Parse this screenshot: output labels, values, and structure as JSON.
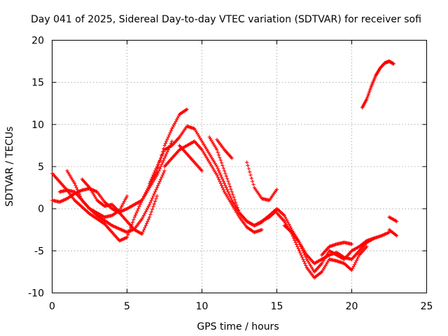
{
  "chart_data": {
    "type": "scatter",
    "title": "Day 041 of 2025, Sidereal Day-to-day VTEC variation (SDTVAR) for receiver sofi",
    "xlabel": "GPS time / hours",
    "ylabel": "SDTVAR / TECUs",
    "xlim": [
      0,
      25
    ],
    "ylim": [
      -10,
      20
    ],
    "xticks": [
      "0",
      "5",
      "10",
      "15",
      "20",
      "25"
    ],
    "yticks": [
      "-10",
      "-5",
      "0",
      "5",
      "10",
      "15",
      "20"
    ],
    "grid": true,
    "marker": "+",
    "color": "#ff0000",
    "series": [
      {
        "name": "trace-1",
        "x": [
          0.0,
          0.5,
          1.0,
          1.5,
          2.0,
          2.5,
          3.0,
          3.5,
          4.0,
          4.5,
          5.0,
          5.5,
          6.0,
          6.5,
          7.0,
          7.5,
          8.0,
          8.5,
          9.0
        ],
        "y": [
          4.2,
          3.2,
          2.2,
          1.0,
          0.2,
          -0.6,
          -1.2,
          -1.8,
          -2.8,
          -3.8,
          -3.4,
          -1.0,
          1.0,
          2.8,
          4.5,
          7.5,
          9.5,
          11.2,
          11.8
        ]
      },
      {
        "name": "trace-2",
        "x": [
          0.0,
          0.5,
          1.0,
          1.5,
          2.0,
          2.5,
          3.0,
          3.5,
          4.0,
          4.5,
          5.0,
          5.5,
          6.0,
          6.5,
          7.0
        ],
        "y": [
          1.0,
          0.8,
          1.2,
          1.8,
          2.2,
          2.4,
          2.0,
          0.8,
          0.0,
          -0.5,
          -1.5,
          -2.5,
          -3.0,
          -1.0,
          1.5
        ]
      },
      {
        "name": "trace-3",
        "x": [
          0.5,
          1.0,
          1.5,
          2.0,
          2.5,
          3.0,
          3.5,
          4.0,
          4.5,
          5.0,
          5.5,
          6.0,
          6.5,
          7.0,
          7.5
        ],
        "y": [
          2.0,
          2.2,
          2.0,
          1.0,
          0.0,
          -0.8,
          -1.4,
          -2.0,
          -2.4,
          -2.8,
          -2.4,
          -1.2,
          0.5,
          2.5,
          4.5
        ]
      },
      {
        "name": "trace-4",
        "x": [
          1.0,
          1.5,
          2.0,
          2.5,
          3.0,
          3.5,
          4.0,
          4.5,
          5.0
        ],
        "y": [
          4.5,
          3.0,
          1.0,
          0.0,
          -0.5,
          -1.0,
          -0.8,
          -0.2,
          1.5
        ]
      },
      {
        "name": "trace-5",
        "x": [
          2.0,
          2.5,
          3.0,
          3.5,
          4.0,
          4.5,
          5.0,
          5.5,
          6.0,
          6.5,
          7.0,
          7.5,
          8.0
        ],
        "y": [
          3.5,
          2.5,
          1.0,
          0.3,
          0.5,
          -0.4,
          0.0,
          0.5,
          1.0,
          2.5,
          4.0,
          6.0,
          8.0
        ]
      },
      {
        "name": "trace-6",
        "x": [
          6.5,
          7.0,
          7.5,
          8.0,
          8.5,
          9.0,
          9.5,
          10.0,
          10.5,
          11.0,
          11.5,
          12.0,
          12.5,
          13.0,
          13.5,
          14.0,
          14.5,
          15.0
        ],
        "y": [
          3.0,
          5.0,
          7.0,
          7.5,
          8.5,
          9.8,
          9.5,
          8.0,
          6.5,
          5.0,
          3.0,
          1.0,
          -0.5,
          -1.5,
          -2.0,
          -1.5,
          -1.0,
          -0.2
        ]
      },
      {
        "name": "trace-7",
        "x": [
          7.5,
          8.0,
          8.5,
          9.0,
          9.5,
          10.0,
          10.5,
          11.0,
          11.5,
          12.0,
          12.5,
          13.0,
          13.5,
          14.0
        ],
        "y": [
          5.0,
          6.0,
          7.0,
          7.5,
          8.0,
          7.0,
          5.5,
          4.0,
          2.0,
          0.5,
          -1.0,
          -2.2,
          -2.8,
          -2.5
        ]
      },
      {
        "name": "trace-8",
        "x": [
          8.5,
          9.0,
          9.5,
          10.0
        ],
        "y": [
          7.5,
          6.5,
          5.5,
          4.5
        ]
      },
      {
        "name": "trace-9",
        "x": [
          10.5,
          11.0,
          11.5,
          12.0,
          12.5,
          13.0,
          13.5,
          14.0
        ],
        "y": [
          8.5,
          7.0,
          4.5,
          2.0,
          -0.5,
          -1.5,
          -2.0,
          -1.6
        ]
      },
      {
        "name": "trace-10",
        "x": [
          11.0,
          11.5,
          12.0
        ],
        "y": [
          8.2,
          7.0,
          6.0
        ]
      },
      {
        "name": "trace-11",
        "x": [
          13.0,
          13.5,
          14.0,
          14.5,
          15.0
        ],
        "y": [
          5.5,
          2.5,
          1.2,
          1.0,
          2.3
        ]
      },
      {
        "name": "trace-12",
        "x": [
          14.0,
          14.5,
          15.0,
          15.5,
          16.0,
          16.5,
          17.0,
          17.5,
          18.0,
          18.5,
          19.0,
          19.5,
          20.0,
          20.5,
          21.0,
          21.5,
          22.0,
          22.5
        ],
        "y": [
          -1.5,
          -0.8,
          0.0,
          -0.8,
          -2.5,
          -4.0,
          -6.0,
          -7.5,
          -6.5,
          -5.0,
          -5.5,
          -6.0,
          -5.0,
          -4.5,
          -3.8,
          -3.5,
          -3.2,
          -2.8
        ]
      },
      {
        "name": "trace-13",
        "x": [
          15.0,
          15.5,
          16.0,
          16.5,
          17.0,
          17.5,
          18.0,
          18.5,
          19.0,
          19.5,
          20.0,
          20.5,
          21.0
        ],
        "y": [
          -0.5,
          -1.5,
          -3.0,
          -5.0,
          -7.0,
          -8.2,
          -7.5,
          -6.0,
          -6.2,
          -6.5,
          -7.3,
          -5.5,
          -4.5
        ]
      },
      {
        "name": "trace-14",
        "x": [
          15.5,
          16.0,
          16.5,
          17.0,
          17.5,
          18.0,
          18.5,
          19.0,
          19.5,
          20.0,
          20.5,
          21.0,
          21.5
        ],
        "y": [
          -2.0,
          -2.8,
          -4.0,
          -5.5,
          -6.5,
          -6.0,
          -5.5,
          -5.2,
          -5.8,
          -6.0,
          -5.0,
          -4.0,
          -3.5
        ]
      },
      {
        "name": "trace-15",
        "x": [
          18.0,
          18.5,
          19.0,
          19.5,
          20.0
        ],
        "y": [
          -5.5,
          -4.5,
          -4.2,
          -4.0,
          -4.2
        ]
      },
      {
        "name": "trace-16",
        "x": [
          22.5,
          23.0
        ],
        "y": [
          -2.5,
          -3.2
        ]
      },
      {
        "name": "trace-17",
        "x": [
          22.5,
          23.0
        ],
        "y": [
          -1.0,
          -1.5
        ]
      },
      {
        "name": "trace-18",
        "x": [
          20.7,
          21.0,
          21.3,
          21.6,
          21.9,
          22.2,
          22.5,
          22.8
        ],
        "y": [
          12.0,
          13.0,
          14.5,
          15.8,
          16.7,
          17.3,
          17.5,
          17.2
        ]
      }
    ]
  }
}
